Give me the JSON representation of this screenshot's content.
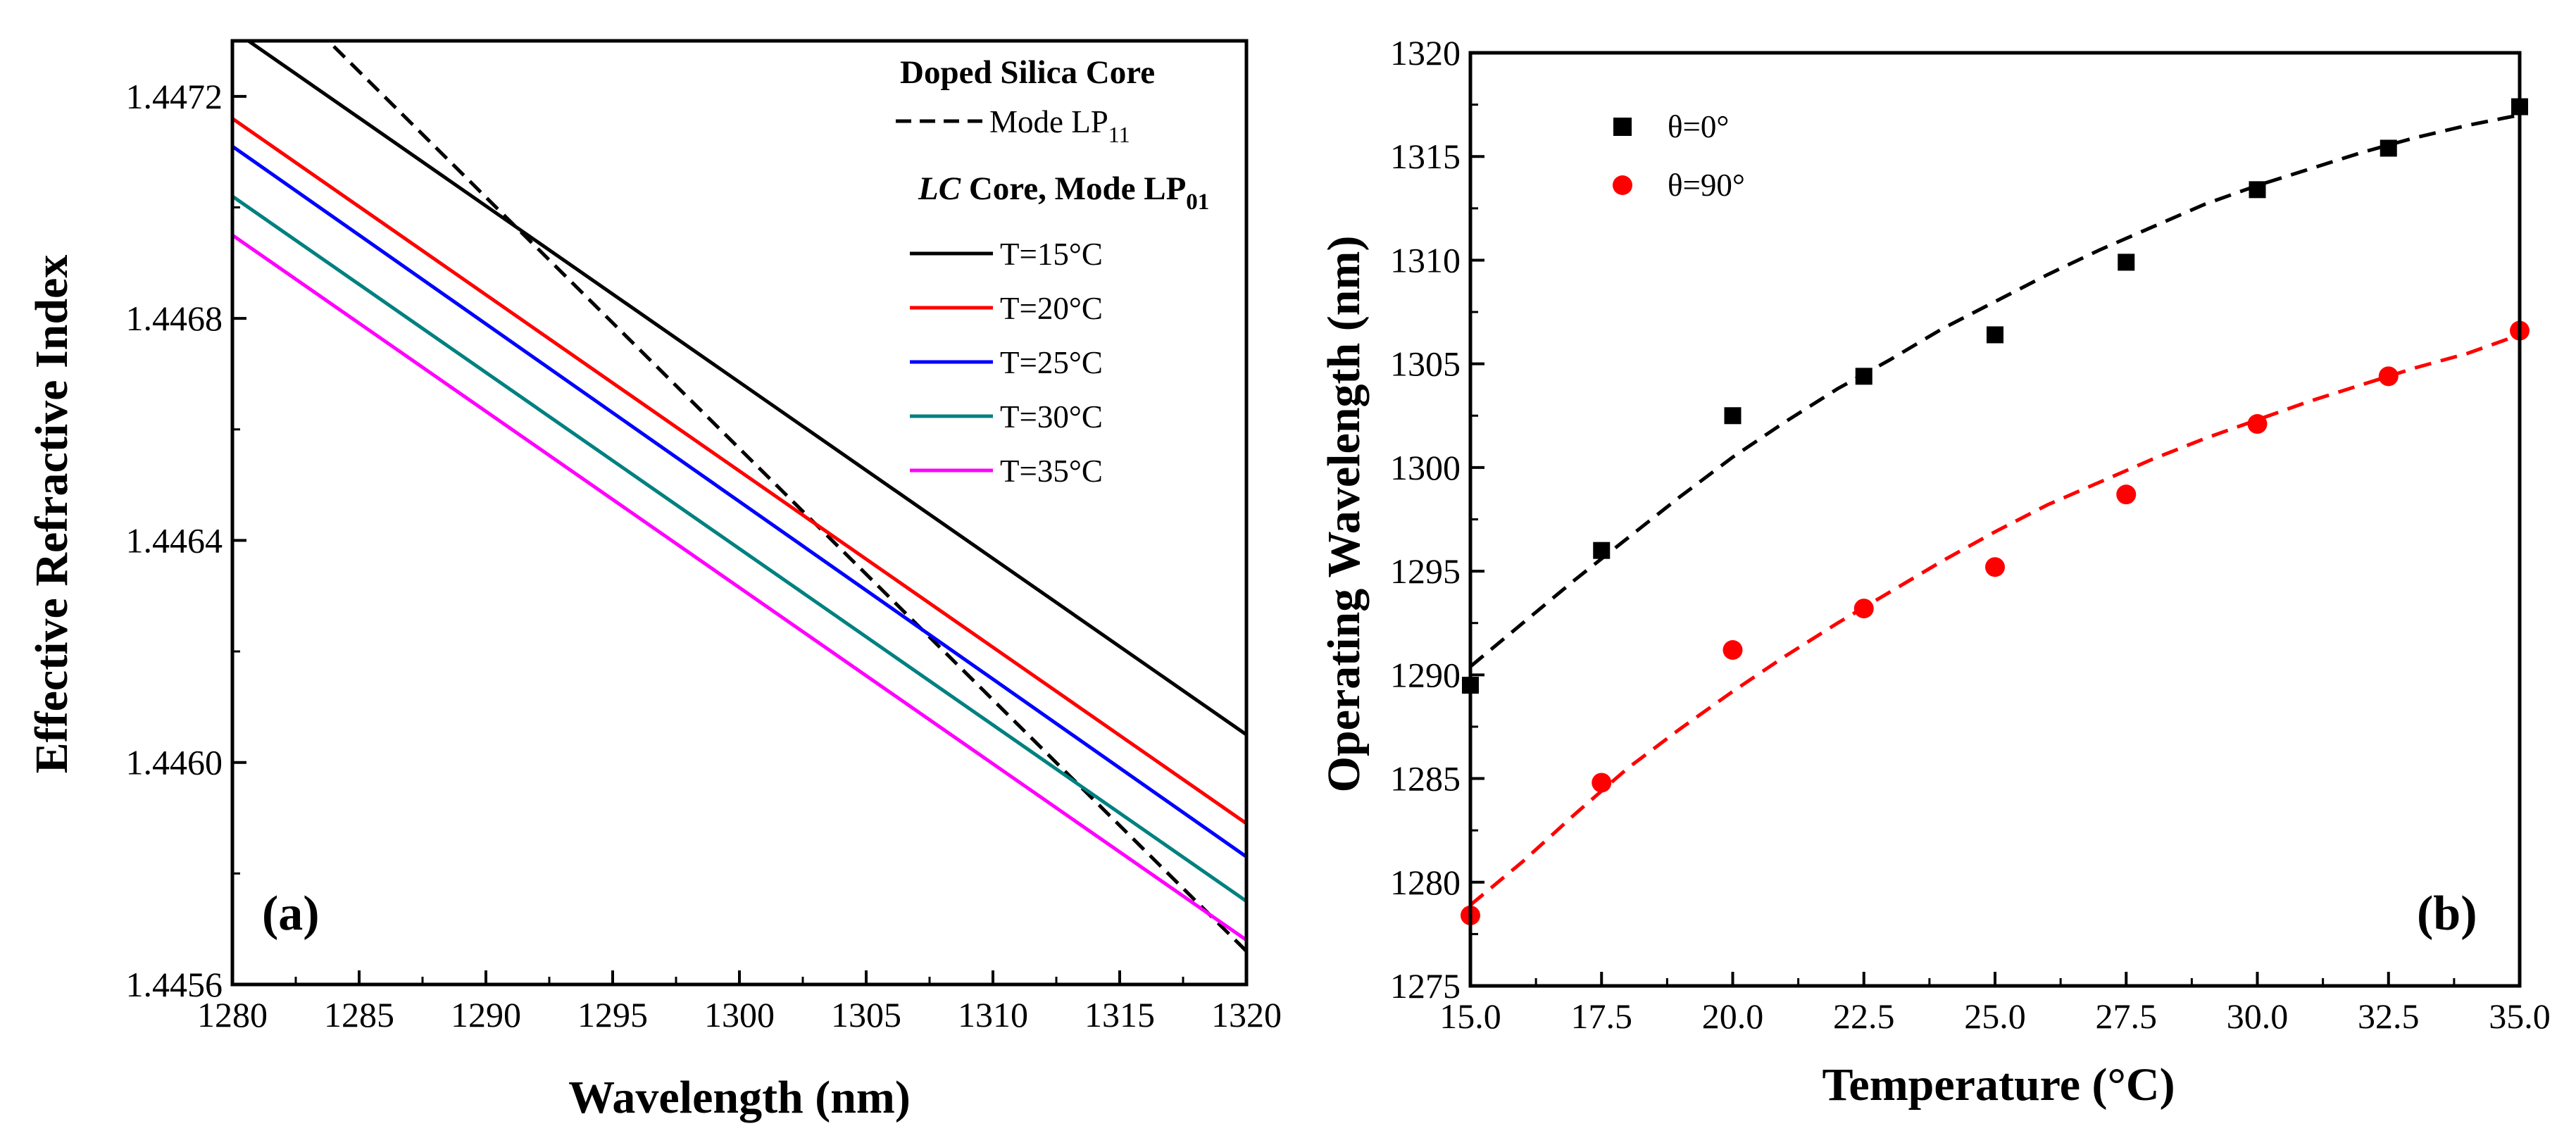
{
  "chart_data": [
    {
      "panel": "(a)",
      "type": "line",
      "title": "",
      "xlabel": "Wavelength (nm)",
      "ylabel": "Effective Refractive Index",
      "xlim": [
        1280,
        1320
      ],
      "ylim": [
        1.4456,
        1.4473
      ],
      "xticks": [
        "1280",
        "1285",
        "1290",
        "1295",
        "1300",
        "1305",
        "1310",
        "1315",
        "1320"
      ],
      "yticks": [
        "1.4456",
        "1.4460",
        "1.4464",
        "1.4468",
        "1.4472"
      ],
      "legend": {
        "heading1": "Doped Silica Core",
        "dash_label": "Mode LP",
        "dash_sub": "11",
        "heading2_italic": "LC",
        "heading2_rest": " Core, Mode LP",
        "heading2_sub": "01"
      },
      "series": [
        {
          "name": "Mode LP11",
          "style": "dashed",
          "color": "#000000",
          "x": [
            1284.0,
            1320.0
          ],
          "y": [
            1.44729,
            1.44566
          ]
        },
        {
          "name": "T=15°C",
          "color": "#000000",
          "x": [
            1280,
            1320
          ],
          "y": [
            1.44732,
            1.44605
          ]
        },
        {
          "name": "T=20°C",
          "color": "#ff0000",
          "x": [
            1280,
            1320
          ],
          "y": [
            1.44716,
            1.44589
          ]
        },
        {
          "name": "T=25°C",
          "color": "#0000ff",
          "x": [
            1280,
            1320
          ],
          "y": [
            1.44711,
            1.44583
          ]
        },
        {
          "name": "T=30°C",
          "color": "#008080",
          "x": [
            1280,
            1320
          ],
          "y": [
            1.44702,
            1.44575
          ]
        },
        {
          "name": "T=35°C",
          "color": "#ff00ff",
          "x": [
            1280,
            1320
          ],
          "y": [
            1.44695,
            1.44568
          ]
        }
      ]
    },
    {
      "panel": "(b)",
      "type": "scatter",
      "title": "",
      "xlabel": "Temperature (°C)",
      "ylabel": "Operating Wavelength (nm)",
      "xlim": [
        15,
        35
      ],
      "ylim": [
        1275,
        1320
      ],
      "xticks": [
        "15.0",
        "17.5",
        "20.0",
        "22.5",
        "25.0",
        "27.5",
        "30.0",
        "32.5",
        "35.0"
      ],
      "yticks": [
        "1275",
        "1280",
        "1285",
        "1290",
        "1295",
        "1300",
        "1305",
        "1310",
        "1315",
        "1320"
      ],
      "series": [
        {
          "name": "θ=0°",
          "marker": "square",
          "color": "#000000",
          "x": [
            15.0,
            17.5,
            20.0,
            22.5,
            25.0,
            27.5,
            30.0,
            32.5,
            35.0
          ],
          "y": [
            1289.5,
            1296.0,
            1302.5,
            1304.4,
            1306.4,
            1309.9,
            1313.4,
            1315.4,
            1317.4
          ],
          "fit_x": [
            15,
            16,
            17,
            18,
            19,
            20,
            21,
            22,
            23,
            24,
            25,
            26,
            27,
            28,
            29,
            30,
            31,
            32,
            33,
            34,
            35
          ],
          "fit_y": [
            1290.4,
            1292.5,
            1294.6,
            1296.6,
            1298.6,
            1300.5,
            1302.2,
            1303.8,
            1305.2,
            1306.7,
            1308.0,
            1309.3,
            1310.5,
            1311.6,
            1312.7,
            1313.6,
            1314.4,
            1315.2,
            1315.9,
            1316.5,
            1317.0
          ]
        },
        {
          "name": "θ=90°",
          "marker": "circle",
          "color": "#ff0000",
          "x": [
            15.0,
            17.5,
            20.0,
            22.5,
            25.0,
            27.5,
            30.0,
            32.5,
            35.0
          ],
          "y": [
            1278.4,
            1284.8,
            1291.2,
            1293.2,
            1295.2,
            1298.7,
            1302.1,
            1304.4,
            1306.6
          ],
          "fit_x": [
            15,
            16,
            17,
            18,
            19,
            20,
            21,
            22,
            23,
            24,
            25,
            26,
            27,
            28,
            29,
            30,
            31,
            32,
            33,
            34,
            35
          ],
          "fit_y": [
            1278.9,
            1281.0,
            1283.3,
            1285.5,
            1287.4,
            1289.2,
            1290.9,
            1292.5,
            1294.0,
            1295.5,
            1296.9,
            1298.2,
            1299.3,
            1300.4,
            1301.4,
            1302.3,
            1303.2,
            1304.0,
            1304.8,
            1305.5,
            1306.4
          ]
        }
      ]
    }
  ]
}
